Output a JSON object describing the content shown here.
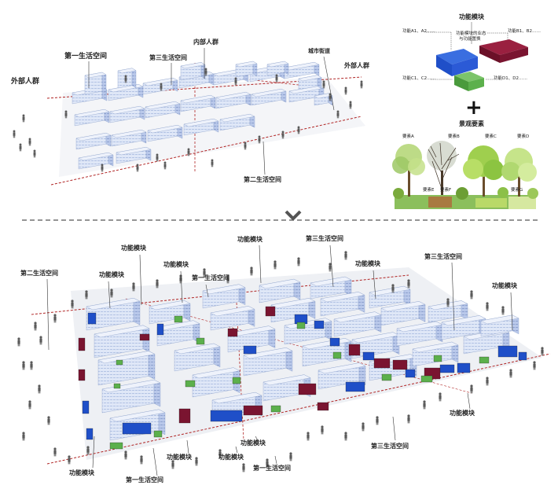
{
  "top_diagram": {
    "external_crowd_left": "外部人群",
    "first_living_space": "第一生活空间",
    "third_living_space": "第三生活空间",
    "internal_crowd": "内部人群",
    "city_street": "城市街道",
    "external_crowd_right": "外部人群",
    "second_living_space": "第二生活空间"
  },
  "legend": {
    "function_title": "功能模块",
    "block_labels": {
      "a": "功能A1、A2……",
      "b": "功能B1、B2……",
      "c": "功能C1、C2……",
      "d": "功能D1、D2……"
    },
    "center_note_line1": "功能模块的业态",
    "center_note_line2": "与功能置换",
    "plus_sign": "+",
    "landscape_title": "景观要素",
    "elements": {
      "a": "要素A",
      "b": "要素B",
      "c": "要素C",
      "d": "要素D",
      "e": "要素E",
      "f": "要素F",
      "g": "要素G"
    }
  },
  "colors": {
    "building_light": "#e2e9f7",
    "building_mid": "#b9c9ea",
    "building_dark": "#8fa3cc",
    "module_blue": "#1f4fc8",
    "module_maroon": "#7a1430",
    "module_green": "#5cb04c",
    "boundary_red": "#b02424",
    "person": "#5a5a5a",
    "divider": "#555555"
  },
  "bottom_diagram": {
    "labels": [
      "第二生活空间",
      "功能模块",
      "功能模块",
      "功能模块",
      "功能模块",
      "第一生活空间",
      "第三生活空间",
      "功能模块",
      "第三生活空间",
      "功能模块",
      "功能模块",
      "第三生活空间",
      "功能模块",
      "第一生活空间",
      "功能模块",
      "功能模块",
      "功能模块",
      "第一生活空间"
    ]
  }
}
